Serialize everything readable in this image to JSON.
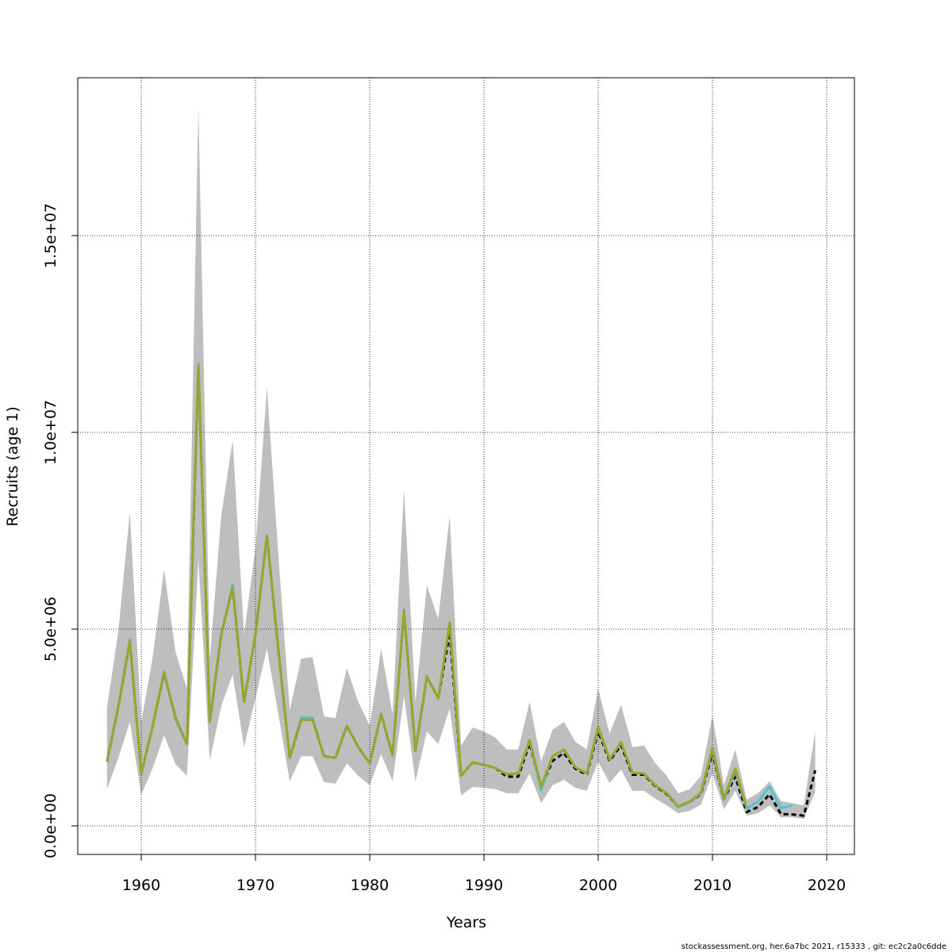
{
  "chart_data": {
    "type": "line",
    "xlabel": "Years",
    "ylabel": "Recruits (age 1)",
    "footer": "stockassessment.org, her.6a7bc  2021, r15333 , git: ec2c2a0c6dde",
    "x": [
      1957,
      1958,
      1959,
      1960,
      1961,
      1962,
      1963,
      1964,
      1965,
      1966,
      1967,
      1968,
      1969,
      1970,
      1971,
      1972,
      1973,
      1974,
      1975,
      1976,
      1977,
      1978,
      1979,
      1980,
      1981,
      1982,
      1983,
      1984,
      1985,
      1986,
      1987,
      1988,
      1989,
      1990,
      1991,
      1992,
      1993,
      1994,
      1995,
      1996,
      1997,
      1998,
      1999,
      2000,
      2001,
      2002,
      2003,
      2004,
      2005,
      2006,
      2007,
      2008,
      2009,
      2010,
      2011,
      2012,
      2013,
      2014,
      2015,
      2016,
      2017,
      2018,
      2019
    ],
    "band": {
      "color": "#bebebe",
      "lower": [
        930000,
        1730000,
        2640000,
        790000,
        1470000,
        2300000,
        1570000,
        1270000,
        6770000,
        1670000,
        3040000,
        3850000,
        2000000,
        3250000,
        4500000,
        2840000,
        1130000,
        1770000,
        1770000,
        1110000,
        1070000,
        1590000,
        1270000,
        1030000,
        1830000,
        1130000,
        3290000,
        1130000,
        2400000,
        2080000,
        2980000,
        770000,
        990000,
        970000,
        930000,
        830000,
        830000,
        1330000,
        580000,
        1030000,
        1170000,
        970000,
        890000,
        1630000,
        1090000,
        1430000,
        890000,
        890000,
        690000,
        520000,
        320000,
        380000,
        540000,
        1330000,
        420000,
        890000,
        260000,
        320000,
        520000,
        220000,
        220000,
        180000,
        870000
      ],
      "upper": [
        3000000,
        4960000,
        7980000,
        2640000,
        4290000,
        6510000,
        4420000,
        3490000,
        18300000,
        4250000,
        7880000,
        9800000,
        4860000,
        7080000,
        11150000,
        6880000,
        2940000,
        4250000,
        4290000,
        2780000,
        2740000,
        4010000,
        3150000,
        2540000,
        4500000,
        2840000,
        8550000,
        3150000,
        6110000,
        5260000,
        7880000,
        2040000,
        2500000,
        2400000,
        2240000,
        1940000,
        1940000,
        3150000,
        1630000,
        2440000,
        2640000,
        2140000,
        1940000,
        3490000,
        2340000,
        3080000,
        2000000,
        2040000,
        1590000,
        1270000,
        830000,
        930000,
        1270000,
        2800000,
        1030000,
        1940000,
        670000,
        830000,
        1130000,
        630000,
        580000,
        520000,
        2400000
      ]
    },
    "series": [
      {
        "color": "#000000",
        "dash": true,
        "values": [
          1630000,
          3040000,
          4700000,
          1330000,
          2540000,
          3890000,
          2740000,
          2080000,
          11700000,
          2640000,
          4860000,
          6070000,
          3150000,
          4860000,
          7380000,
          4460000,
          1730000,
          2700000,
          2700000,
          1770000,
          1730000,
          2540000,
          2000000,
          1590000,
          2840000,
          1790000,
          5460000,
          1900000,
          3790000,
          3250000,
          4900000,
          1270000,
          1610000,
          1550000,
          1470000,
          1250000,
          1250000,
          2100000,
          970000,
          1650000,
          1850000,
          1450000,
          1300000,
          2400000,
          1650000,
          2050000,
          1300000,
          1300000,
          1010000,
          810000,
          480000,
          600000,
          810000,
          1850000,
          670000,
          1250000,
          350000,
          480000,
          800000,
          300000,
          290000,
          260000,
          1410000
        ]
      },
      {
        "color": "#4ec3d6",
        "dash": false,
        "values": [
          1630000,
          3040000,
          4750000,
          1330000,
          2540000,
          3930000,
          2700000,
          2080000,
          11750000,
          2640000,
          4860000,
          6120000,
          3150000,
          4860000,
          7380000,
          4460000,
          1730000,
          2750000,
          2750000,
          1770000,
          1730000,
          2540000,
          2000000,
          1590000,
          2840000,
          1790000,
          5500000,
          1900000,
          3810000,
          3250000,
          5160000,
          1270000,
          1610000,
          1550000,
          1470000,
          1310000,
          1330000,
          2180000,
          900000,
          1770000,
          1940000,
          1490000,
          1330000,
          2480000,
          1690000,
          2120000,
          1350000,
          1330000,
          1030000,
          830000,
          480000,
          600000,
          830000,
          1940000,
          670000,
          1390000,
          440000,
          620000,
          1000000,
          450000,
          520000,
          null,
          null
        ]
      },
      {
        "color": "#9aa52a",
        "dash": false,
        "values": [
          1630000,
          3040000,
          4700000,
          1330000,
          2540000,
          3890000,
          2740000,
          2080000,
          11700000,
          2640000,
          4860000,
          6070000,
          3150000,
          4860000,
          7380000,
          4460000,
          1730000,
          2700000,
          2700000,
          1770000,
          1730000,
          2540000,
          2000000,
          1590000,
          2840000,
          1790000,
          5460000,
          1900000,
          3790000,
          3250000,
          5160000,
          1270000,
          1610000,
          1550000,
          1470000,
          1310000,
          1330000,
          2180000,
          990000,
          1770000,
          1940000,
          1490000,
          1330000,
          2520000,
          1690000,
          2120000,
          1350000,
          1330000,
          1030000,
          830000,
          500000,
          620000,
          850000,
          1980000,
          700000,
          1450000,
          460000,
          null,
          null,
          null,
          null,
          null,
          null
        ]
      }
    ],
    "xlim": [
      1954.44,
      2022.43
    ],
    "xticks": [
      1960,
      1970,
      1980,
      1990,
      2000,
      2010,
      2020
    ],
    "ylim": [
      -726000,
      19012000
    ],
    "yticks": [
      {
        "value": 0,
        "label": "0.0e+00"
      },
      {
        "value": 5000000,
        "label": "5.0e+06"
      },
      {
        "value": 10000000,
        "label": "1.0e+07"
      },
      {
        "value": 15000000,
        "label": "1.5e+07"
      }
    ],
    "grid": true
  }
}
